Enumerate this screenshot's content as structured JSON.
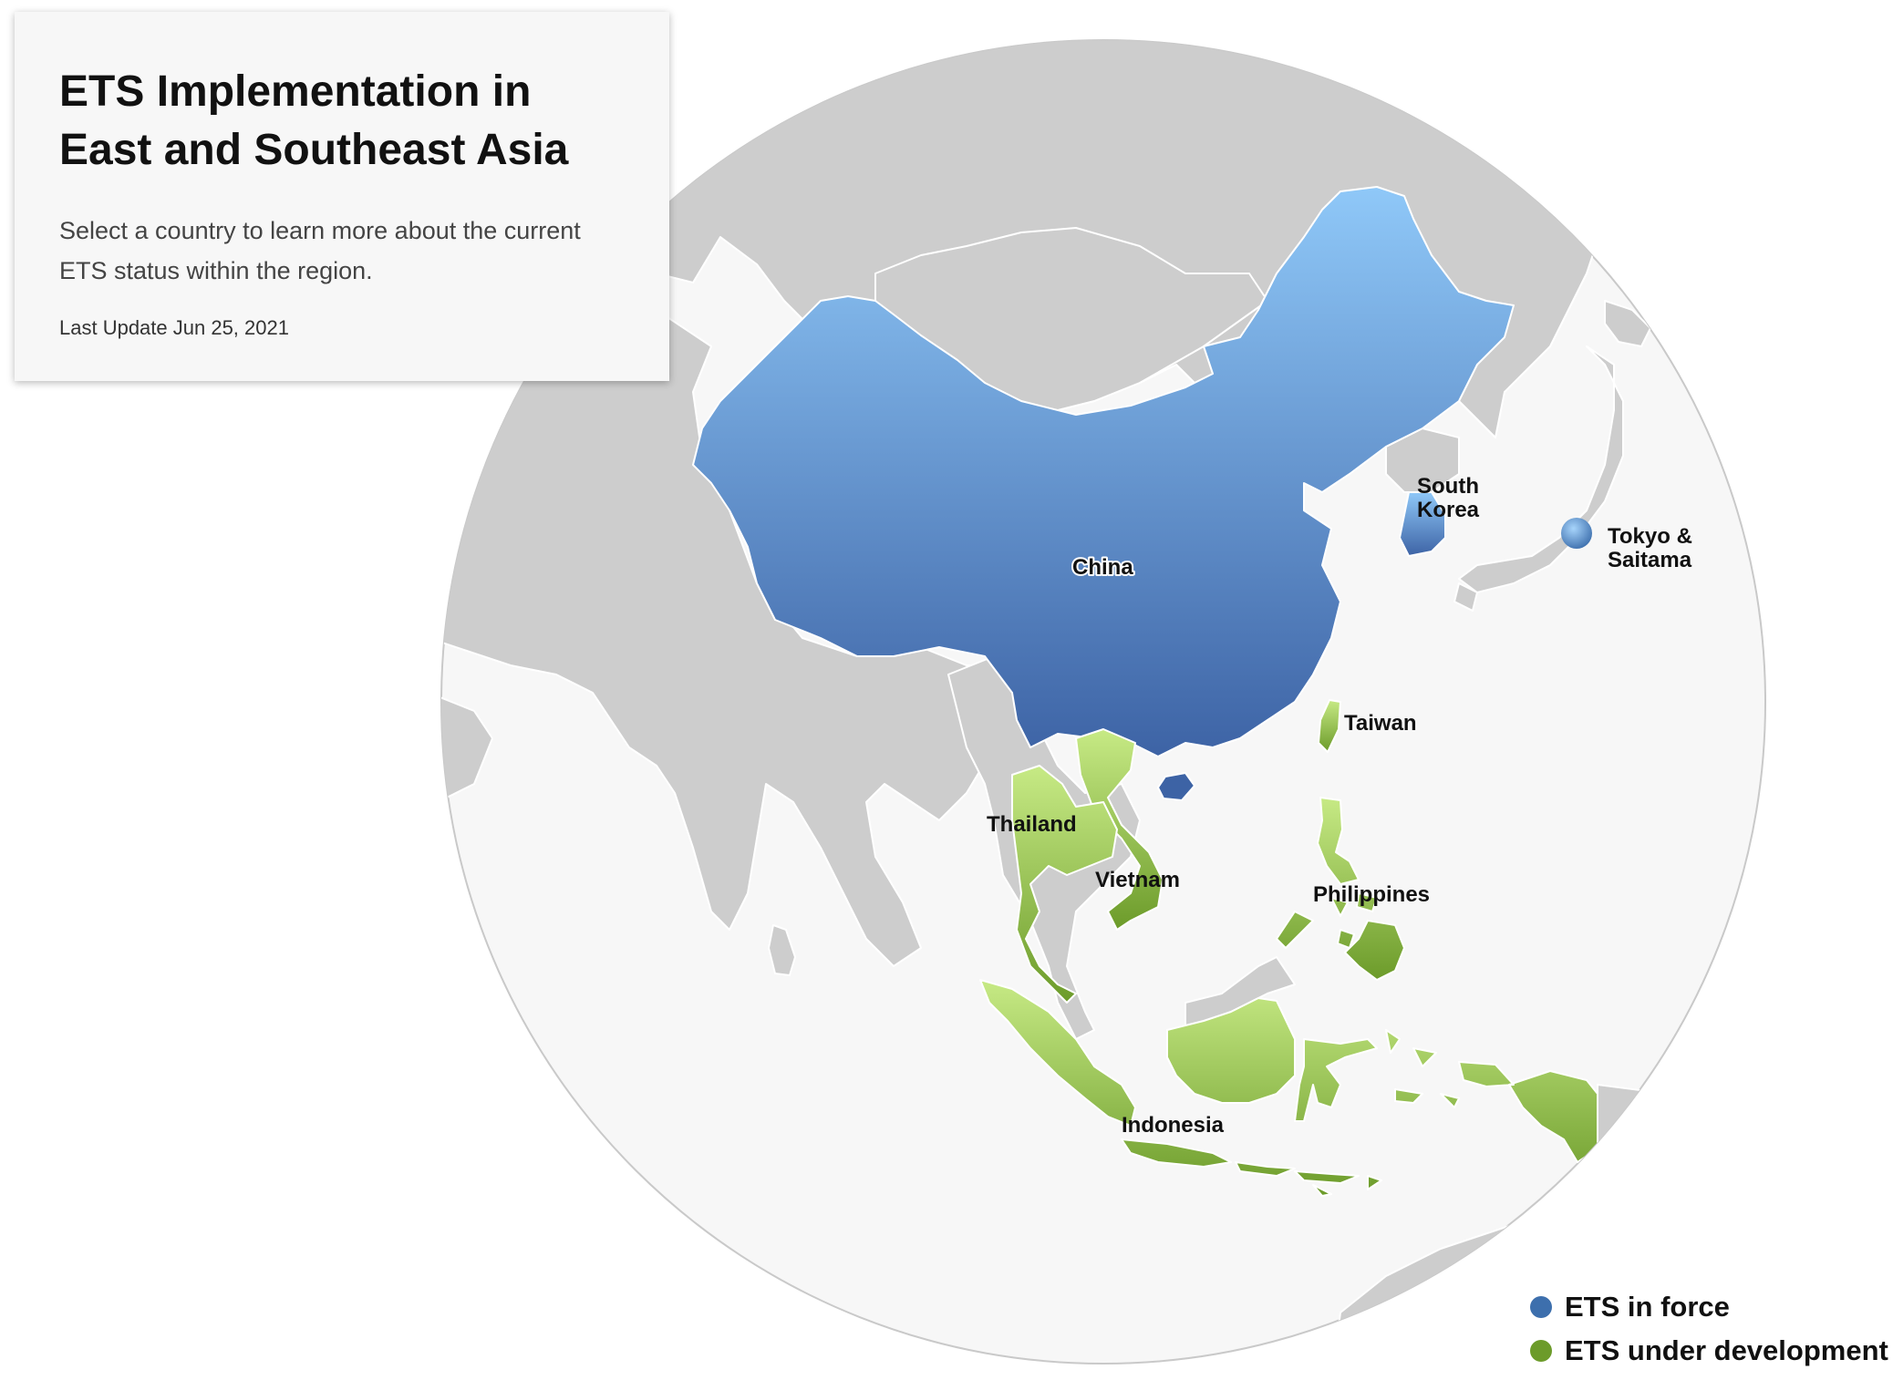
{
  "info": {
    "title": "ETS Implementation in East and Southeast Asia",
    "description": "Select a country to learn more about the current ETS status within the region.",
    "last_update": "Last Update Jun 25, 2021"
  },
  "colors": {
    "ets_in_force": "#3d6fad",
    "ets_in_force_light": "#8fc8f8",
    "ets_under_development": "#6c9b2a",
    "ets_under_development_light": "#c7ea85",
    "land": "#cdcdcd",
    "ocean": "#f7f7f7"
  },
  "countries": [
    {
      "name": "China",
      "status": "ETS in force"
    },
    {
      "name": "South Korea",
      "status": "ETS in force"
    },
    {
      "name": "Tokyo & Saitama",
      "status": "ETS in force"
    },
    {
      "name": "Taiwan",
      "status": "ETS under development"
    },
    {
      "name": "Thailand",
      "status": "ETS under development"
    },
    {
      "name": "Vietnam",
      "status": "ETS under development"
    },
    {
      "name": "Philippines",
      "status": "ETS under development"
    },
    {
      "name": "Indonesia",
      "status": "ETS under development"
    }
  ],
  "labels": {
    "china": "China",
    "south_korea_1": "South",
    "south_korea_2": "Korea",
    "tokyo_1": "Tokyo &",
    "tokyo_2": "Saitama",
    "taiwan": "Taiwan",
    "thailand": "Thailand",
    "vietnam": "Vietnam",
    "philippines": "Philippines",
    "indonesia": "Indonesia"
  },
  "legend": [
    {
      "label": "ETS in force",
      "color": "#3d6fad"
    },
    {
      "label": "ETS under development",
      "color": "#6c9b2a"
    }
  ]
}
